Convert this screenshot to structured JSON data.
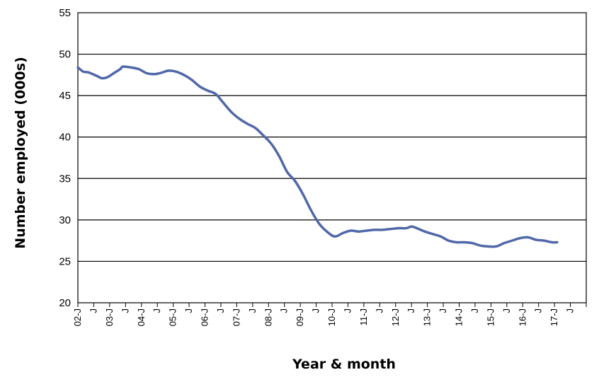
{
  "chart_data": {
    "type": "line",
    "xlabel": "Year & month",
    "ylabel": "Number employed (000s)",
    "ylim": [
      20,
      55
    ],
    "yticks": [
      20,
      25,
      30,
      35,
      40,
      45,
      50,
      55
    ],
    "grid": "horizontal",
    "x_tick_labels": [
      "02-J",
      "J",
      "03-J",
      "J",
      "04-J",
      "J",
      "05-J",
      "J",
      "06-J",
      "J",
      "07-J",
      "J",
      "08-J",
      "J",
      "09-J",
      "J",
      "10-J",
      "J",
      "11-J",
      "J",
      "12-J",
      "J",
      "13-J",
      "J",
      "14-J",
      "J",
      "15-J",
      "J",
      "16-J",
      "J",
      "17-J",
      "J"
    ],
    "x_start": "2002-01",
    "x_end": "2017-12",
    "series": [
      {
        "color": "#5068A8",
        "points": [
          [
            "2002-01",
            48.4
          ],
          [
            "2002-03",
            47.9
          ],
          [
            "2002-05",
            47.8
          ],
          [
            "2002-08",
            47.4
          ],
          [
            "2002-10",
            47.1
          ],
          [
            "2002-12",
            47.2
          ],
          [
            "2003-03",
            47.8
          ],
          [
            "2003-05",
            48.2
          ],
          [
            "2003-06",
            48.5
          ],
          [
            "2003-09",
            48.4
          ],
          [
            "2003-12",
            48.2
          ],
          [
            "2004-03",
            47.7
          ],
          [
            "2004-06",
            47.6
          ],
          [
            "2004-09",
            47.8
          ],
          [
            "2004-11",
            48.0
          ],
          [
            "2005-02",
            47.9
          ],
          [
            "2005-05",
            47.5
          ],
          [
            "2005-08",
            46.9
          ],
          [
            "2005-11",
            46.1
          ],
          [
            "2006-02",
            45.6
          ],
          [
            "2006-05",
            45.2
          ],
          [
            "2006-08",
            44.1
          ],
          [
            "2006-11",
            43.0
          ],
          [
            "2007-02",
            42.2
          ],
          [
            "2007-05",
            41.6
          ],
          [
            "2007-08",
            41.1
          ],
          [
            "2007-11",
            40.2
          ],
          [
            "2008-02",
            39.2
          ],
          [
            "2008-05",
            37.7
          ],
          [
            "2008-08",
            35.8
          ],
          [
            "2008-11",
            34.7
          ],
          [
            "2009-02",
            33.1
          ],
          [
            "2009-05",
            31.2
          ],
          [
            "2009-08",
            29.6
          ],
          [
            "2009-11",
            28.6
          ],
          [
            "2010-02",
            28.0
          ],
          [
            "2010-05",
            28.4
          ],
          [
            "2010-08",
            28.7
          ],
          [
            "2010-11",
            28.6
          ],
          [
            "2011-02",
            28.7
          ],
          [
            "2011-05",
            28.8
          ],
          [
            "2011-08",
            28.8
          ],
          [
            "2011-11",
            28.9
          ],
          [
            "2012-02",
            29.0
          ],
          [
            "2012-05",
            29.0
          ],
          [
            "2012-07",
            29.2
          ],
          [
            "2012-09",
            29.0
          ],
          [
            "2012-12",
            28.6
          ],
          [
            "2013-03",
            28.3
          ],
          [
            "2013-06",
            28.0
          ],
          [
            "2013-09",
            27.5
          ],
          [
            "2013-12",
            27.3
          ],
          [
            "2014-03",
            27.3
          ],
          [
            "2014-06",
            27.2
          ],
          [
            "2014-09",
            26.9
          ],
          [
            "2014-12",
            26.8
          ],
          [
            "2015-03",
            26.8
          ],
          [
            "2015-06",
            27.2
          ],
          [
            "2015-09",
            27.5
          ],
          [
            "2015-12",
            27.8
          ],
          [
            "2016-03",
            27.9
          ],
          [
            "2016-06",
            27.6
          ],
          [
            "2016-09",
            27.5
          ],
          [
            "2016-12",
            27.3
          ],
          [
            "2017-02",
            27.3
          ]
        ]
      }
    ]
  }
}
